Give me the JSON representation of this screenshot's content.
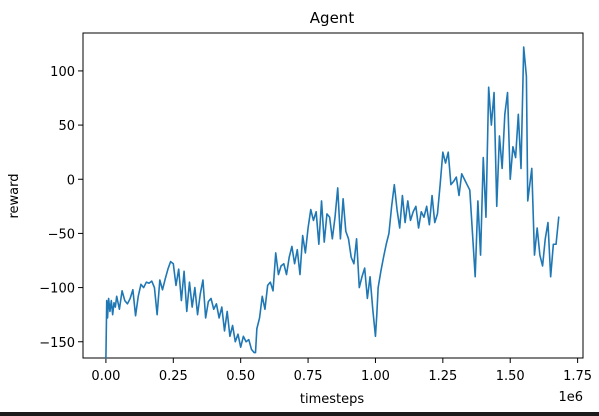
{
  "chart_data": {
    "type": "line",
    "title": "Agent",
    "xlabel": "timesteps",
    "ylabel": "reward",
    "x_offset_label": "1e6",
    "xlim": [
      -0.085,
      1.77
    ],
    "ylim": [
      -165,
      135
    ],
    "xticks": [
      0.0,
      0.25,
      0.5,
      0.75,
      1.0,
      1.25,
      1.5,
      1.75
    ],
    "xtick_labels": [
      "0.00",
      "0.25",
      "0.50",
      "0.75",
      "1.00",
      "1.25",
      "1.50",
      "1.75"
    ],
    "yticks": [
      -150,
      -100,
      -50,
      0,
      50,
      100
    ],
    "ytick_labels": [
      "−150",
      "−100",
      "−50",
      "0",
      "50",
      "100"
    ],
    "grid": false,
    "color": "#1f77b4",
    "series": [
      {
        "x": [
          0.0,
          0.003,
          0.006,
          0.01,
          0.015,
          0.02,
          0.025,
          0.03,
          0.035,
          0.04,
          0.05,
          0.06,
          0.07,
          0.08,
          0.09,
          0.1,
          0.11,
          0.12,
          0.13,
          0.14,
          0.15,
          0.16,
          0.17,
          0.18,
          0.19,
          0.2,
          0.21,
          0.22,
          0.23,
          0.24,
          0.25,
          0.26,
          0.27,
          0.28,
          0.29,
          0.3,
          0.31,
          0.32,
          0.33,
          0.34,
          0.35,
          0.36,
          0.37,
          0.38,
          0.39,
          0.4,
          0.41,
          0.42,
          0.43,
          0.44,
          0.45,
          0.46,
          0.47,
          0.48,
          0.49,
          0.5,
          0.51,
          0.52,
          0.53,
          0.54,
          0.55,
          0.555,
          0.56,
          0.57,
          0.58,
          0.59,
          0.6,
          0.61,
          0.62,
          0.63,
          0.64,
          0.65,
          0.66,
          0.67,
          0.68,
          0.69,
          0.7,
          0.71,
          0.72,
          0.73,
          0.74,
          0.75,
          0.76,
          0.77,
          0.78,
          0.79,
          0.8,
          0.81,
          0.82,
          0.83,
          0.84,
          0.85,
          0.86,
          0.87,
          0.88,
          0.89,
          0.9,
          0.91,
          0.92,
          0.93,
          0.94,
          0.95,
          0.96,
          0.97,
          0.98,
          0.99,
          1.0,
          1.005,
          1.01,
          1.02,
          1.03,
          1.04,
          1.05,
          1.06,
          1.07,
          1.08,
          1.09,
          1.1,
          1.11,
          1.12,
          1.13,
          1.14,
          1.15,
          1.16,
          1.17,
          1.18,
          1.19,
          1.2,
          1.21,
          1.22,
          1.23,
          1.24,
          1.25,
          1.26,
          1.27,
          1.28,
          1.29,
          1.3,
          1.31,
          1.32,
          1.33,
          1.34,
          1.35,
          1.36,
          1.37,
          1.38,
          1.39,
          1.4,
          1.41,
          1.42,
          1.43,
          1.44,
          1.45,
          1.46,
          1.47,
          1.48,
          1.49,
          1.5,
          1.51,
          1.52,
          1.53,
          1.54,
          1.55,
          1.56,
          1.565,
          1.57,
          1.58,
          1.59,
          1.6,
          1.61,
          1.62,
          1.63,
          1.64,
          1.65,
          1.66,
          1.67,
          1.68
        ],
        "y": [
          -165,
          -112,
          -128,
          -110,
          -122,
          -112,
          -125,
          -114,
          -118,
          -108,
          -120,
          -103,
          -112,
          -115,
          -110,
          -102,
          -126,
          -108,
          -97,
          -100,
          -95,
          -96,
          -94,
          -100,
          -125,
          -93,
          -102,
          -92,
          -83,
          -76,
          -78,
          -98,
          -83,
          -112,
          -85,
          -122,
          -95,
          -118,
          -100,
          -125,
          -106,
          -93,
          -128,
          -113,
          -110,
          -120,
          -115,
          -128,
          -118,
          -140,
          -122,
          -145,
          -135,
          -150,
          -143,
          -155,
          -145,
          -150,
          -148,
          -157,
          -160,
          -160,
          -138,
          -128,
          -108,
          -120,
          -98,
          -95,
          -103,
          -68,
          -88,
          -80,
          -78,
          -88,
          -72,
          -62,
          -78,
          -65,
          -88,
          -52,
          -68,
          -45,
          -28,
          -38,
          -30,
          -60,
          -20,
          -58,
          -32,
          -35,
          -55,
          -35,
          -8,
          -55,
          -18,
          -48,
          -55,
          -72,
          -78,
          -55,
          -100,
          -90,
          -82,
          -110,
          -90,
          -120,
          -145,
          -125,
          -100,
          -85,
          -72,
          -60,
          -50,
          -25,
          -5,
          -28,
          -45,
          -15,
          -40,
          -20,
          -38,
          -30,
          -25,
          -45,
          -30,
          -35,
          -25,
          -42,
          -15,
          -40,
          -32,
          -5,
          25,
          15,
          25,
          -5,
          -2,
          2,
          -15,
          5,
          0,
          -5,
          -10,
          -50,
          -90,
          -20,
          -70,
          20,
          -35,
          85,
          50,
          80,
          -25,
          40,
          10,
          60,
          80,
          0,
          30,
          20,
          60,
          10,
          122,
          95,
          -20,
          -10,
          10,
          -70,
          -45,
          -70,
          -80,
          -55,
          -40,
          -90,
          -60,
          -60,
          -35
        ]
      }
    ]
  }
}
